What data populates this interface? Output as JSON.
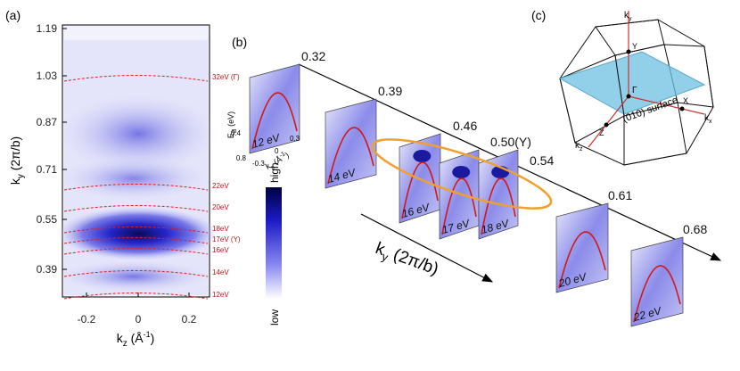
{
  "panel_a": {
    "label": "(a)",
    "y_axis_label": {
      "symbol": "k",
      "sub": "y",
      "rest": " (2π/b)"
    },
    "y_ticks": [
      "1.19",
      "1.03",
      "0.87",
      "0.71",
      "0.55",
      "0.39"
    ],
    "x_ticks": [
      "-0.2",
      "0",
      "0.2"
    ],
    "x_axis_label": {
      "symbol": "k",
      "sub": "z",
      "rest": " (Å",
      "sup": "-1",
      "close": ")"
    },
    "energy_labels": [
      "32eV (Γ)",
      "22eV",
      "20eV",
      "18eV",
      "17eV (Y)",
      "16eV",
      "14eV",
      "12eV"
    ]
  },
  "colorbar": {
    "high": "high",
    "low": "low"
  },
  "panel_b": {
    "label": "(b)",
    "ky_labels": [
      "0.32",
      "0.39",
      "0.46",
      "0.50(Y)",
      "0.54",
      "0.61",
      "0.68"
    ],
    "cut_labels": [
      "12 eV",
      "14 eV",
      "16 eV",
      "17 eV",
      "18 eV",
      "20 eV",
      "22 eV"
    ],
    "axis_label": {
      "symbol": "k",
      "sub": "y",
      "rest": " (2π/b)"
    },
    "inset": {
      "e_symbol": "E",
      "e_sub": "B",
      "e_rest": " (eV)",
      "e_ticks": [
        "0.4",
        "0.8"
      ],
      "k_ticks": [
        "-0.3",
        "0",
        "0.3"
      ],
      "k_label": "k",
      "k_sub": "z",
      "k_rest": " (Å",
      "k_sup": "-1",
      "k_close": ")"
    }
  },
  "panel_c": {
    "label": "(c)",
    "kz": "k",
    "kz_sub": "z",
    "ky": "k",
    "ky_sub": "y",
    "kx": "k",
    "kx_sub": "x",
    "gamma": "Γ",
    "y": "Y",
    "x": "X",
    "z": "Z",
    "surface": "(010) surface"
  }
}
